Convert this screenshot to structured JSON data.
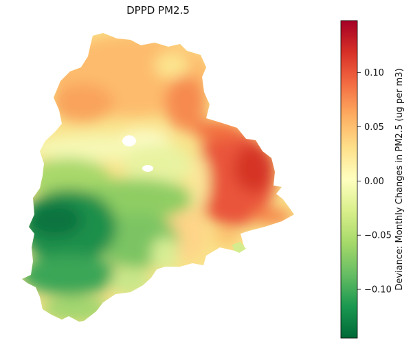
{
  "title": "DPPD PM2.5",
  "colorbar": {
    "label": "Deviance: Monthly Changes in PM2.5 (ug per m3)",
    "min": -0.145,
    "max": 0.148,
    "ticks": [
      {
        "value": 0.1,
        "label": "0.10"
      },
      {
        "value": 0.05,
        "label": "0.05"
      },
      {
        "value": 0.0,
        "label": "0.00"
      },
      {
        "value": -0.05,
        "label": "−0.05"
      },
      {
        "value": -0.1,
        "label": "−0.10"
      }
    ],
    "colormap": "RdYlGn_r",
    "stops": [
      "#006837",
      "#1a9850",
      "#66bd63",
      "#a6d96a",
      "#d9ef8b",
      "#ffffbf",
      "#fee08b",
      "#fdae61",
      "#f46d43",
      "#d73027",
      "#a50026"
    ]
  }
}
